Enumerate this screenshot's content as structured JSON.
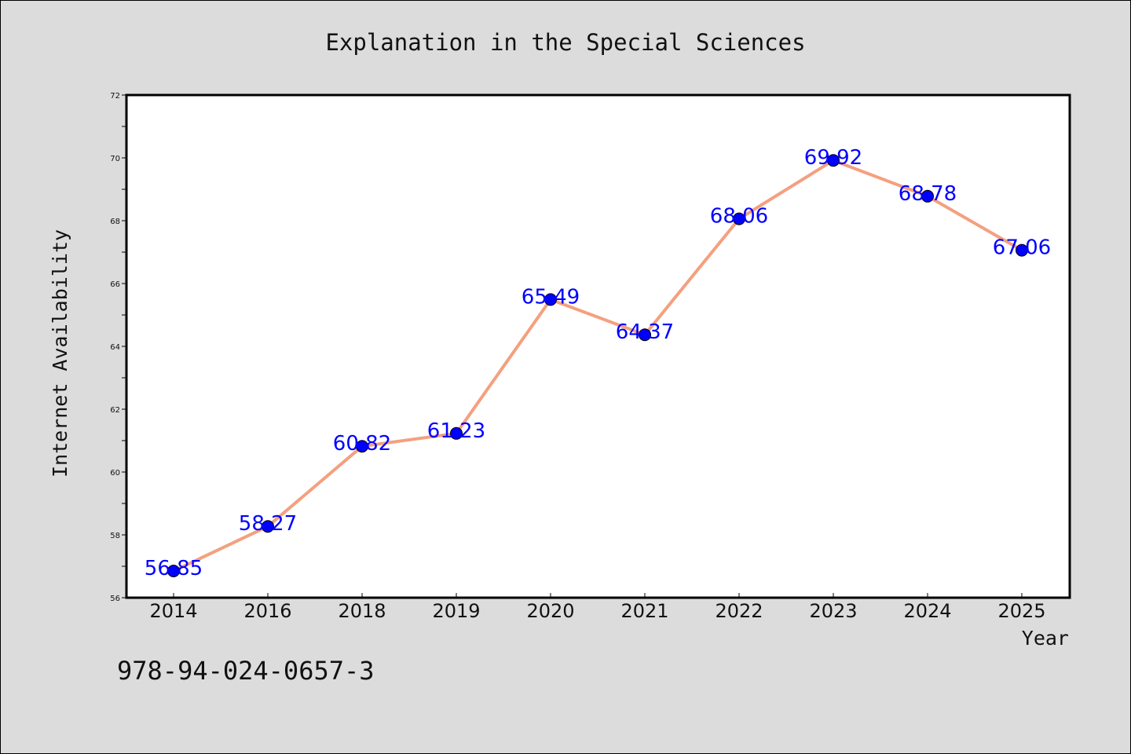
{
  "chart_data": {
    "type": "line",
    "title": "Explanation in the Special Sciences",
    "xlabel": "Year",
    "ylabel": "Internet Availability",
    "categories": [
      "2014",
      "2016",
      "2018",
      "2019",
      "2020",
      "2021",
      "2022",
      "2023",
      "2024",
      "2025"
    ],
    "series": [
      {
        "values": [
          56.85,
          58.27,
          60.82,
          61.23,
          65.49,
          64.37,
          68.06,
          69.92,
          68.78,
          67.06
        ],
        "line_color": "#f4a07f",
        "marker_color": "#0000ff",
        "label_color": "#0000ff"
      }
    ],
    "ylim": [
      56,
      72
    ],
    "yticks": [
      "56",
      "58",
      "60",
      "62",
      "64",
      "66",
      "68",
      "70",
      "72"
    ],
    "grid": false,
    "legend": "none"
  },
  "annotation": {
    "isbn": "978-94-024-0657-3"
  },
  "colors": {
    "background": "#dcdcdc",
    "plot_background": "#ffffff",
    "axis": "#000000"
  }
}
